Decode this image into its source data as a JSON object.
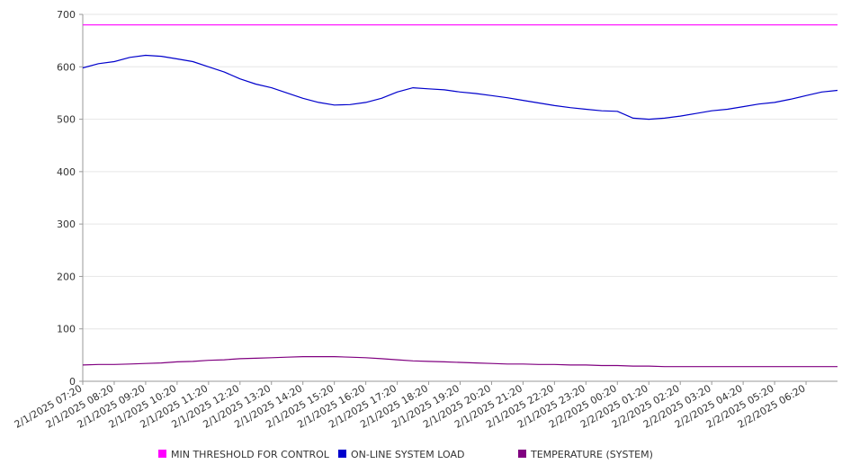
{
  "chart_data": {
    "type": "line",
    "title": "",
    "xlabel": "",
    "ylabel": "",
    "ylim": [
      0,
      700
    ],
    "y_ticks": [
      0,
      100,
      200,
      300,
      400,
      500,
      600,
      700
    ],
    "grid": "horizontal",
    "legend_position": "bottom",
    "x_start": "2/1/2025 07:20",
    "x_end": "2/2/2025 07:20",
    "x_tick_labels": [
      "2/1/2025 07:20",
      "2/1/2025 08:20",
      "2/1/2025 09:20",
      "2/1/2025 10:20",
      "2/1/2025 11:20",
      "2/1/2025 12:20",
      "2/1/2025 13:20",
      "2/1/2025 14:20",
      "2/1/2025 15:20",
      "2/1/2025 16:20",
      "2/1/2025 17:20",
      "2/1/2025 18:20",
      "2/1/2025 19:20",
      "2/1/2025 20:20",
      "2/1/2025 21:20",
      "2/1/2025 22:20",
      "2/1/2025 23:20",
      "2/2/2025 00:20",
      "2/2/2025 01:20",
      "2/2/2025 02:20",
      "2/2/2025 03:20",
      "2/2/2025 04:20",
      "2/2/2025 05:20",
      "2/2/2025 06:20"
    ],
    "x": [
      "2/1/2025 07:20",
      "2/1/2025 07:50",
      "2/1/2025 08:20",
      "2/1/2025 08:50",
      "2/1/2025 09:20",
      "2/1/2025 09:50",
      "2/1/2025 10:20",
      "2/1/2025 10:50",
      "2/1/2025 11:20",
      "2/1/2025 11:50",
      "2/1/2025 12:20",
      "2/1/2025 12:50",
      "2/1/2025 13:20",
      "2/1/2025 13:50",
      "2/1/2025 14:20",
      "2/1/2025 14:50",
      "2/1/2025 15:20",
      "2/1/2025 15:50",
      "2/1/2025 16:20",
      "2/1/2025 16:50",
      "2/1/2025 17:20",
      "2/1/2025 17:50",
      "2/1/2025 18:20",
      "2/1/2025 18:50",
      "2/1/2025 19:20",
      "2/1/2025 19:50",
      "2/1/2025 20:20",
      "2/1/2025 20:50",
      "2/1/2025 21:20",
      "2/1/2025 21:50",
      "2/1/2025 22:20",
      "2/1/2025 22:50",
      "2/1/2025 23:20",
      "2/1/2025 23:50",
      "2/2/2025 00:20",
      "2/2/2025 00:50",
      "2/2/2025 01:20",
      "2/2/2025 01:50",
      "2/2/2025 02:20",
      "2/2/2025 02:50",
      "2/2/2025 03:20",
      "2/2/2025 03:50",
      "2/2/2025 04:20",
      "2/2/2025 04:50",
      "2/2/2025 05:20",
      "2/2/2025 05:50",
      "2/2/2025 06:20",
      "2/2/2025 06:50",
      "2/2/2025 07:20"
    ],
    "series": [
      {
        "name": "MIN THRESHOLD FOR CONTROL",
        "color": "#ff00ff",
        "values": [
          680,
          680,
          680,
          680,
          680,
          680,
          680,
          680,
          680,
          680,
          680,
          680,
          680,
          680,
          680,
          680,
          680,
          680,
          680,
          680,
          680,
          680,
          680,
          680,
          680,
          680,
          680,
          680,
          680,
          680,
          680,
          680,
          680,
          680,
          680,
          680,
          680,
          680,
          680,
          680,
          680,
          680,
          680,
          680,
          680,
          680,
          680,
          680,
          680
        ]
      },
      {
        "name": "ON-LINE SYSTEM LOAD",
        "color": "#0000cc",
        "values": [
          598,
          606,
          610,
          618,
          622,
          620,
          615,
          610,
          600,
          590,
          577,
          567,
          560,
          550,
          540,
          532,
          527,
          528,
          532,
          540,
          552,
          560,
          558,
          556,
          552,
          549,
          545,
          541,
          536,
          531,
          526,
          522,
          519,
          516,
          515,
          502,
          500,
          502,
          506,
          511,
          516,
          519,
          524,
          529,
          532,
          538,
          545,
          552,
          555
        ]
      },
      {
        "name": "TEMPERATURE (SYSTEM)",
        "color": "#800080",
        "values": [
          31,
          32,
          32,
          33,
          34,
          35,
          37,
          38,
          40,
          41,
          43,
          44,
          45,
          46,
          47,
          47,
          47,
          46,
          45,
          43,
          41,
          39,
          38,
          37,
          36,
          35,
          34,
          33,
          33,
          32,
          32,
          31,
          31,
          30,
          30,
          29,
          29,
          28,
          28,
          28,
          28,
          28,
          28,
          28,
          28,
          28,
          28,
          28,
          28
        ]
      }
    ]
  }
}
